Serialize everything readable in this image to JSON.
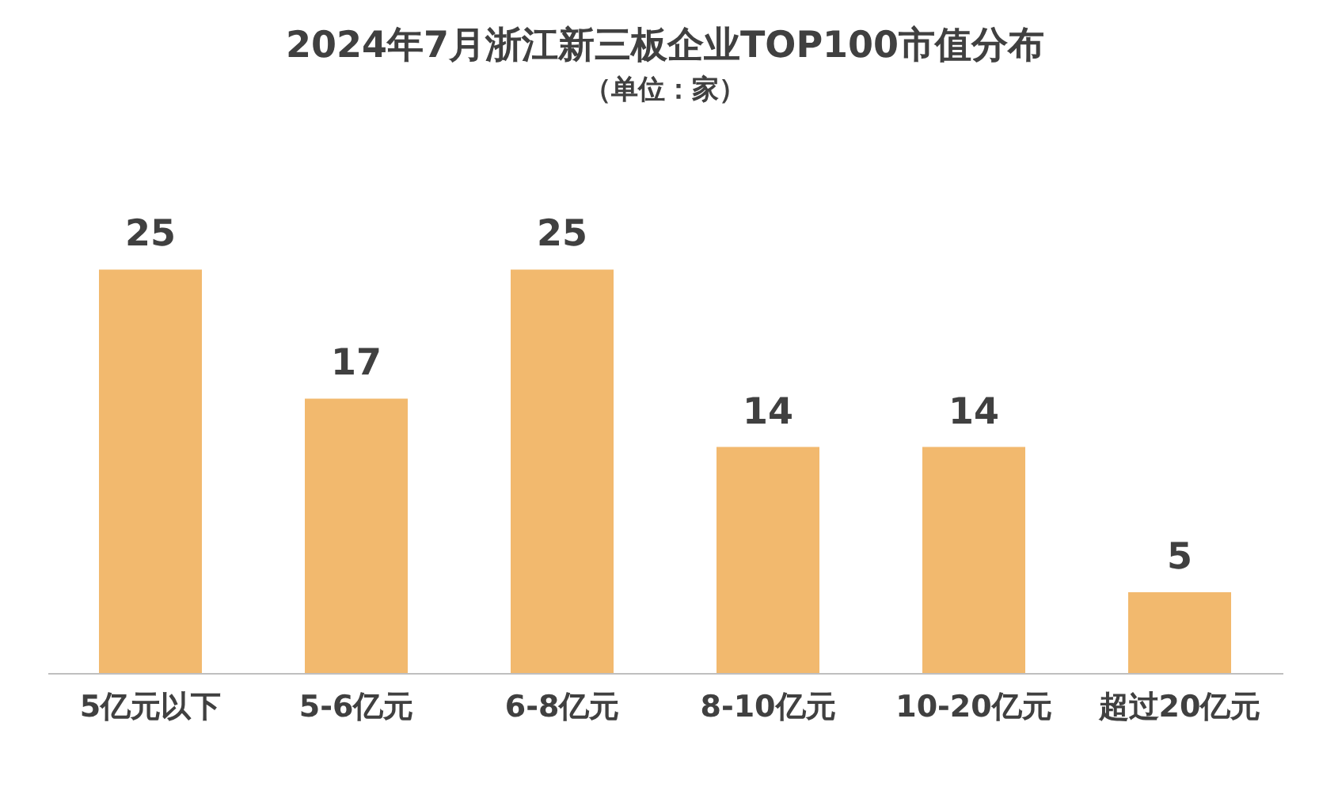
{
  "chart_data": {
    "type": "bar",
    "title": "2024年7月浙江新三板企业TOP100市值分布",
    "subtitle": "（单位：家）",
    "categories": [
      "5亿元以下",
      "5-6亿元",
      "6-8亿元",
      "8-10亿元",
      "10-20亿元",
      "超过20亿元"
    ],
    "values": [
      25,
      17,
      25,
      14,
      14,
      5
    ],
    "color": "#f2b96e",
    "data_labels": true
  }
}
